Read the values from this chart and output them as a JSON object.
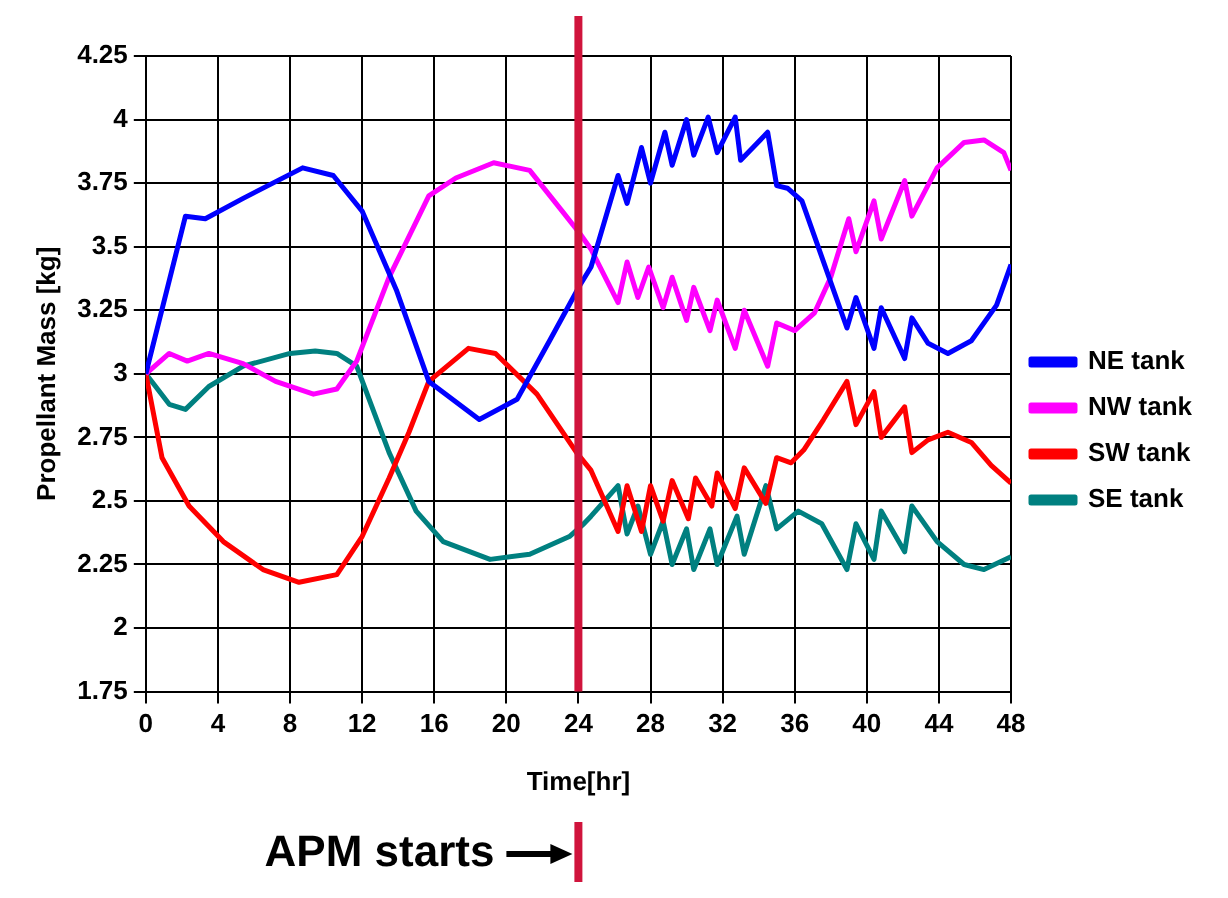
{
  "chart_data": {
    "type": "line",
    "xlabel": "Time[hr]",
    "ylabel": "Propellant Mass [kg]",
    "xlim": [
      0,
      48
    ],
    "xticks": [
      0,
      4,
      8,
      12,
      16,
      20,
      24,
      28,
      32,
      36,
      40,
      44,
      48
    ],
    "ylim": [
      1.75,
      4.25
    ],
    "yticks": [
      1.75,
      2.0,
      2.25,
      2.5,
      2.75,
      3.0,
      3.25,
      3.5,
      3.75,
      4.0,
      4.25
    ],
    "grid": true,
    "legend": "right",
    "marker": "none",
    "line_style": "solid",
    "ref_lines": [
      {
        "axis": "x",
        "value": 24,
        "color": "#d0143c"
      }
    ],
    "annotations": [
      "APM starts"
    ],
    "series": [
      {
        "name": "NE tank",
        "color": "#0000ff",
        "x": [
          0,
          2.2,
          3.3,
          5.4,
          8.7,
          10.4,
          12,
          13.9,
          15.7,
          18.5,
          20.6,
          22.4,
          24.1,
          24.7,
          26.2,
          26.7,
          27.5,
          28.0,
          28.8,
          29.2,
          30.0,
          30.4,
          31.2,
          31.7,
          32.7,
          33.0,
          34.5,
          35.0,
          35.6,
          36.4,
          37.3,
          38.9,
          39.4,
          40.4,
          40.8,
          42.1,
          42.5,
          43.4,
          44.5,
          45.8,
          47.2,
          48
        ],
        "values": [
          3.0,
          3.62,
          3.61,
          3.69,
          3.81,
          3.78,
          3.64,
          3.33,
          2.97,
          2.82,
          2.9,
          3.13,
          3.35,
          3.42,
          3.78,
          3.67,
          3.89,
          3.75,
          3.95,
          3.82,
          4.0,
          3.86,
          4.01,
          3.87,
          4.01,
          3.84,
          3.95,
          3.74,
          3.73,
          3.68,
          3.5,
          3.18,
          3.3,
          3.1,
          3.26,
          3.06,
          3.22,
          3.12,
          3.08,
          3.13,
          3.27,
          3.43
        ]
      },
      {
        "name": "NW tank",
        "color": "#ff00ff",
        "x": [
          0,
          1.3,
          2.3,
          3.5,
          5.4,
          7.2,
          9.3,
          10.6,
          11.7,
          13.5,
          15.7,
          17.2,
          19.3,
          21.3,
          23.1,
          24.1,
          24.7,
          26.2,
          26.7,
          27.3,
          27.9,
          28.7,
          29.2,
          30.0,
          30.4,
          31.3,
          31.7,
          32.7,
          33.2,
          34.5,
          35.0,
          36.0,
          37.1,
          38.0,
          39.0,
          39.4,
          40.4,
          40.8,
          42.1,
          42.5,
          43.9,
          45.4,
          46.5,
          47.6,
          48
        ],
        "values": [
          3.0,
          3.08,
          3.05,
          3.08,
          3.04,
          2.97,
          2.92,
          2.94,
          3.05,
          3.38,
          3.7,
          3.77,
          3.83,
          3.8,
          3.64,
          3.55,
          3.49,
          3.28,
          3.44,
          3.3,
          3.42,
          3.26,
          3.38,
          3.21,
          3.34,
          3.17,
          3.29,
          3.1,
          3.25,
          3.03,
          3.2,
          3.17,
          3.24,
          3.38,
          3.61,
          3.48,
          3.68,
          3.53,
          3.76,
          3.62,
          3.81,
          3.91,
          3.92,
          3.87,
          3.8
        ]
      },
      {
        "name": "SW tank",
        "color": "#ff0000",
        "x": [
          0,
          0.9,
          2.4,
          4.3,
          6.5,
          8.5,
          10.6,
          12,
          13.5,
          14.6,
          15.7,
          17.9,
          19.4,
          21.7,
          23.9,
          24.7,
          26.2,
          26.7,
          27.5,
          28.0,
          28.7,
          29.2,
          30.1,
          30.5,
          31.4,
          31.7,
          32.7,
          33.2,
          34.4,
          35.0,
          35.8,
          36.5,
          37.6,
          38.9,
          39.4,
          40.4,
          40.8,
          42.1,
          42.5,
          43.4,
          44.5,
          45.8,
          46.9,
          48
        ],
        "values": [
          3.0,
          2.67,
          2.48,
          2.34,
          2.23,
          2.18,
          2.21,
          2.36,
          2.59,
          2.77,
          2.97,
          3.1,
          3.08,
          2.92,
          2.69,
          2.62,
          2.38,
          2.56,
          2.38,
          2.56,
          2.42,
          2.58,
          2.43,
          2.59,
          2.48,
          2.61,
          2.47,
          2.63,
          2.49,
          2.67,
          2.65,
          2.7,
          2.82,
          2.97,
          2.8,
          2.93,
          2.75,
          2.87,
          2.69,
          2.74,
          2.77,
          2.73,
          2.64,
          2.57
        ]
      },
      {
        "name": "SE tank",
        "color": "#008080",
        "x": [
          0,
          1.3,
          2.2,
          3.5,
          5.4,
          8.0,
          9.4,
          10.6,
          11.7,
          13.5,
          15.0,
          16.5,
          19.1,
          21.3,
          23.5,
          24.3,
          24.7,
          26.2,
          26.7,
          27.3,
          28.0,
          28.7,
          29.2,
          30.0,
          30.4,
          31.3,
          31.7,
          32.8,
          33.2,
          34.4,
          35.0,
          36.2,
          37.5,
          38.9,
          39.4,
          40.4,
          40.8,
          42.1,
          42.5,
          43.9,
          45.4,
          46.5,
          48
        ],
        "values": [
          3.0,
          2.88,
          2.86,
          2.95,
          3.03,
          3.08,
          3.09,
          3.08,
          3.03,
          2.69,
          2.46,
          2.34,
          2.27,
          2.29,
          2.36,
          2.41,
          2.44,
          2.56,
          2.37,
          2.48,
          2.29,
          2.42,
          2.25,
          2.39,
          2.23,
          2.39,
          2.25,
          2.44,
          2.29,
          2.56,
          2.39,
          2.46,
          2.41,
          2.23,
          2.41,
          2.27,
          2.46,
          2.3,
          2.48,
          2.34,
          2.25,
          2.23,
          2.28
        ]
      }
    ]
  }
}
